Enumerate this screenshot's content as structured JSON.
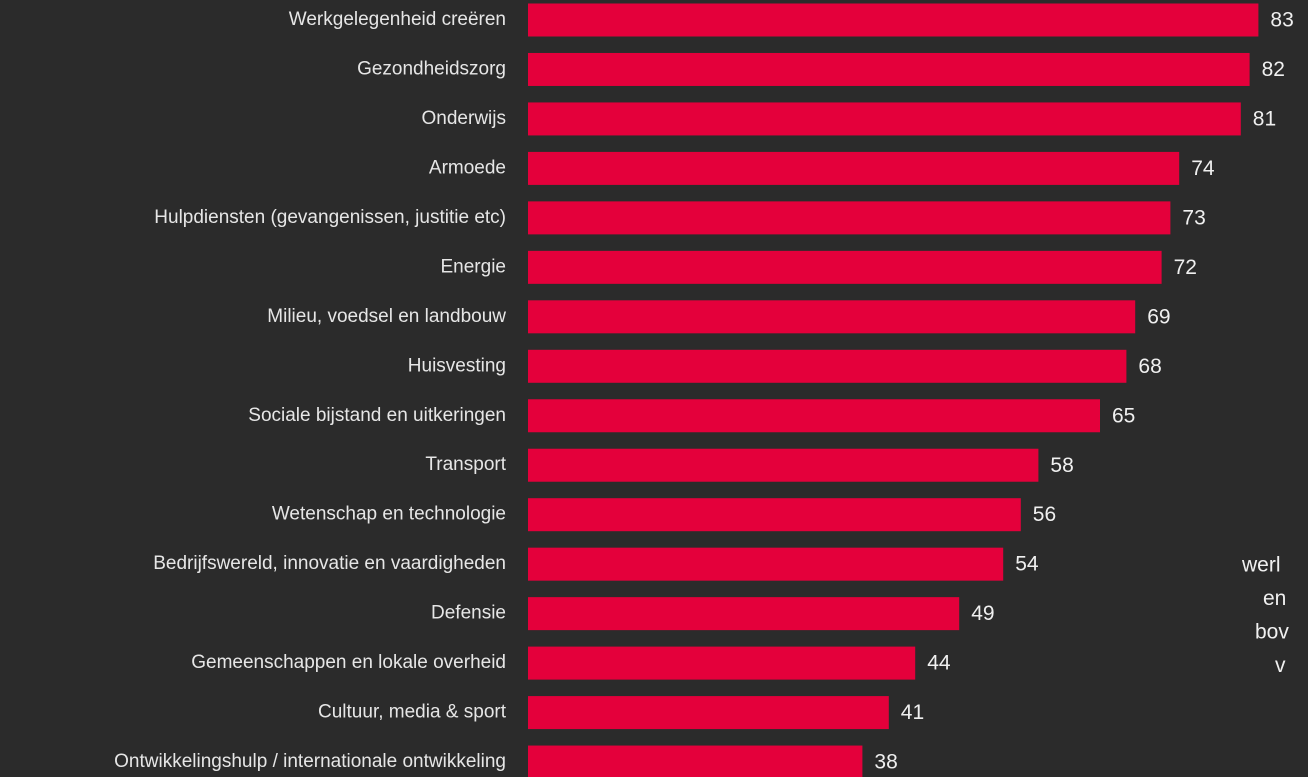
{
  "chart_data": {
    "type": "bar",
    "categories": [
      "Werkgelegenheid creëren",
      "Gezondheidszorg",
      "Onderwijs",
      "Armoede",
      "Hulpdiensten (gevangenissen, justitie etc)",
      "Energie",
      "Milieu, voedsel en landbouw",
      "Huisvesting",
      "Sociale bijstand en uitkeringen",
      "Transport",
      "Wetenschap en technologie",
      "Bedrijfswereld, innovatie en vaardigheden",
      "Defensie",
      "Gemeenschappen en lokale overheid",
      "Cultuur, media & sport",
      "Ontwikkelingshulp / internationale ontwikkeling"
    ],
    "values": [
      83,
      82,
      81,
      74,
      73,
      72,
      69,
      68,
      65,
      58,
      56,
      54,
      49,
      44,
      41,
      38
    ],
    "color": "#e4003b",
    "xlim": [
      0,
      100
    ],
    "annotation": [
      "werl",
      "en",
      "bov",
      "v"
    ]
  }
}
